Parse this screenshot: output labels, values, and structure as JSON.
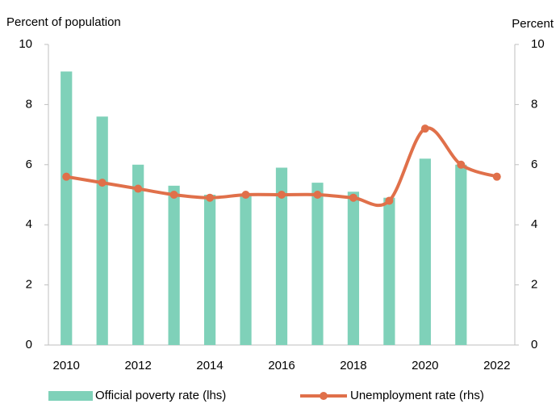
{
  "chart_data": {
    "type": "bar_line",
    "y_label": "Percent of population",
    "y2_label": "Percent",
    "categories": [
      "2010",
      null,
      "2012",
      null,
      "2014",
      null,
      "2016",
      null,
      "2018",
      null,
      "2020",
      null,
      "2022"
    ],
    "series": [
      {
        "name": "Official poverty rate (lhs)",
        "color": "#7fd1b9",
        "type": "bar",
        "values": [
          9.1,
          7.6,
          6.0,
          5.3,
          5.0,
          5.0,
          5.9,
          5.4,
          5.1,
          4.9,
          6.2,
          6.0,
          null
        ]
      },
      {
        "name": "Unemployment rate (rhs)",
        "color": "#e0704a",
        "type": "line",
        "axis": "y2",
        "values": [
          5.6,
          5.4,
          5.2,
          5.0,
          4.9,
          5.0,
          5.0,
          5.0,
          4.9,
          4.8,
          7.2,
          6.0,
          5.6
        ]
      }
    ],
    "ylim": [
      0,
      10
    ],
    "yticks": [
      0,
      2,
      4,
      6,
      8,
      10
    ],
    "y2lim": [
      0,
      10
    ],
    "y2ticks": [
      0,
      2,
      4,
      6,
      8,
      10
    ]
  }
}
